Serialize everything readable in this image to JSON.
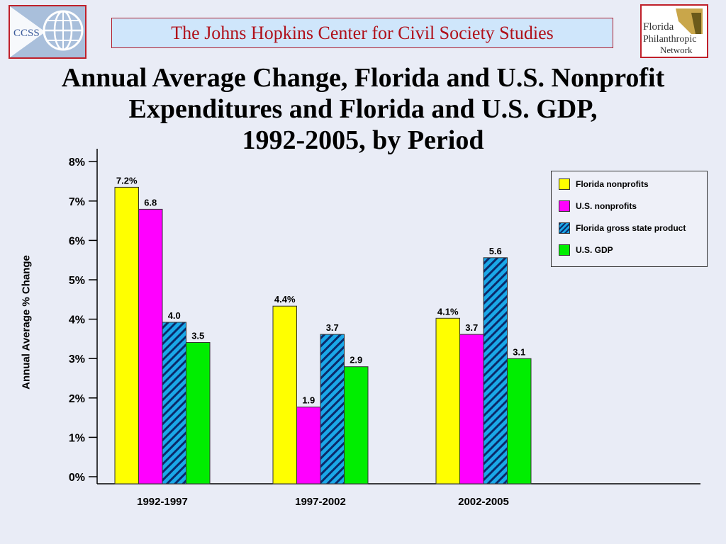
{
  "header": {
    "banner": "The Johns Hopkins Center for Civil Society Studies",
    "left_logo": "CCSS",
    "right_logo": [
      "Florida",
      "Philanthropic",
      "Network"
    ]
  },
  "title_lines": [
    "Annual Average Change, Florida and U.S. Nonprofit",
    "Expenditures and Florida and U.S. GDP,",
    "1992-2005, by Period"
  ],
  "chart_data": {
    "type": "bar",
    "title": "Annual Average Change, Florida and U.S. Nonprofit Expenditures and Florida and U.S. GDP, 1992-2005, by Period",
    "xlabel": "",
    "ylabel": "Annual Average % Change",
    "ylim": [
      0,
      8
    ],
    "yticks": [
      "0%",
      "1%",
      "2%",
      "3%",
      "4%",
      "5%",
      "6%",
      "7%",
      "8%"
    ],
    "categories": [
      "1992-1997",
      "1997-2002",
      "2002-2005"
    ],
    "legend_position": "top-right",
    "grid": false,
    "series": [
      {
        "name": "Florida nonprofits",
        "color": "#ffff00",
        "pattern": "solid",
        "values": [
          7.2,
          4.4,
          4.1
        ],
        "labels": [
          "7.2%",
          "4.4%",
          "4.1%"
        ]
      },
      {
        "name": "U.S. nonprofits",
        "color": "#ff00ff",
        "pattern": "solid",
        "values": [
          6.8,
          1.9,
          3.7
        ],
        "labels": [
          "6.8",
          "1.9",
          "3.7"
        ]
      },
      {
        "name": "Florida gross state product",
        "color": "#1aa8e8",
        "pattern": "hatched",
        "values": [
          4.0,
          3.7,
          5.6
        ],
        "labels": [
          "4.0",
          "3.7",
          "5.6"
        ]
      },
      {
        "name": "U.S.  GDP",
        "color": "#00ee00",
        "pattern": "solid",
        "values": [
          3.5,
          2.9,
          3.1
        ],
        "labels": [
          "3.5",
          "2.9",
          "3.1"
        ]
      }
    ]
  }
}
